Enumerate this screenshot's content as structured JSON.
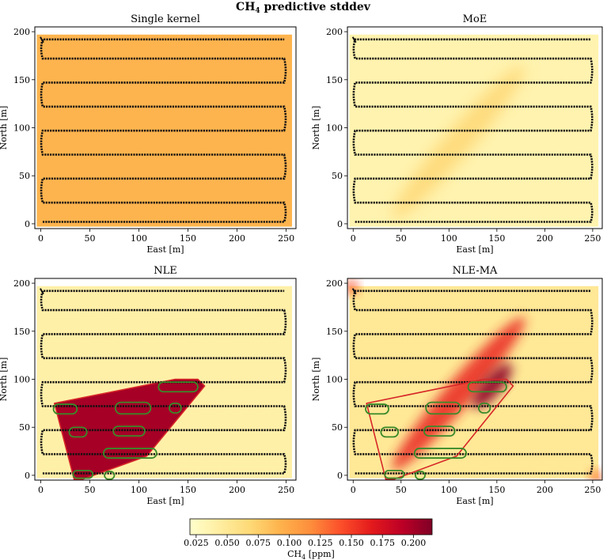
{
  "figure": {
    "title_main": "CH",
    "title_sub": "4",
    "title_rest": " predictive stddev"
  },
  "colorbar": {
    "label_main": "CH",
    "label_sub": "4",
    "label_rest": " [ppm]",
    "range": [
      0.02,
      0.215
    ],
    "ticks": [
      {
        "value": 0.025,
        "label": "0.025"
      },
      {
        "value": 0.05,
        "label": "0.050"
      },
      {
        "value": 0.075,
        "label": "0.075"
      },
      {
        "value": 0.1,
        "label": "0.100"
      },
      {
        "value": 0.125,
        "label": "0.125"
      },
      {
        "value": 0.15,
        "label": "0.150"
      },
      {
        "value": 0.175,
        "label": "0.175"
      },
      {
        "value": 0.2,
        "label": "0.200"
      }
    ],
    "colormap": [
      "#ffffcc",
      "#ffeda0",
      "#fed976",
      "#feb24c",
      "#fd8d3c",
      "#fc4e2a",
      "#e31a1c",
      "#bd0026",
      "#800026"
    ]
  },
  "chart_data": [
    {
      "type": "heatmap",
      "title": "Single kernel",
      "xlabel": "East [m]",
      "ylabel": "North [m]",
      "xlim": [
        -6,
        260
      ],
      "ylim": [
        -5,
        205
      ],
      "xticks": [
        0,
        50,
        100,
        150,
        200,
        250
      ],
      "yticks": [
        0,
        50,
        100,
        150,
        200
      ],
      "base_std": 0.092,
      "plume_peak_std": 0,
      "source_hull": false,
      "nle_region": false
    },
    {
      "type": "heatmap",
      "title": "MoE",
      "xlabel": "East [m]",
      "ylabel": "North [m]",
      "xlim": [
        -6,
        260
      ],
      "ylim": [
        -5,
        205
      ],
      "xticks": [
        0,
        50,
        100,
        150,
        200,
        250
      ],
      "yticks": [
        0,
        50,
        100,
        150,
        200
      ],
      "base_std": 0.036,
      "plume_peak_std": 0.07,
      "source_hull": false,
      "nle_region": false
    },
    {
      "type": "heatmap",
      "title": "NLE",
      "xlabel": "East [m]",
      "ylabel": "North [m]",
      "xlim": [
        -6,
        260
      ],
      "ylim": [
        -5,
        205
      ],
      "xticks": [
        0,
        50,
        100,
        150,
        200,
        250
      ],
      "yticks": [
        0,
        50,
        100,
        150,
        200
      ],
      "base_std": 0.04,
      "plume_peak_std": 0,
      "region_std": 0.2,
      "source_hull": true,
      "nle_region": true
    },
    {
      "type": "heatmap",
      "title": "NLE-MA",
      "xlabel": "East [m]",
      "ylabel": "North [m]",
      "xlim": [
        -6,
        260
      ],
      "ylim": [
        -5,
        205
      ],
      "xticks": [
        0,
        50,
        100,
        150,
        200,
        250
      ],
      "yticks": [
        0,
        50,
        100,
        150,
        200
      ],
      "base_std": 0.05,
      "plume_peak_std": 0.16,
      "source_hull": true,
      "nle_region": false
    }
  ],
  "flight_path": {
    "rows_north_m": [
      2,
      22,
      47,
      72,
      97,
      122,
      147,
      172,
      192
    ],
    "x_left_m": 2,
    "x_right_m": 248
  },
  "source_hull_m": [
    [
      14,
      75
    ],
    [
      137,
      100
    ],
    [
      160,
      100
    ],
    [
      167,
      93
    ],
    [
      108,
      20
    ],
    [
      43,
      -4
    ],
    [
      34,
      -4
    ],
    [
      14,
      75
    ]
  ],
  "candidate_sources_m": [
    {
      "cx": 140,
      "cy": 92,
      "rx": 20,
      "ry": 5
    },
    {
      "cx": 25,
      "cy": 69,
      "rx": 12,
      "ry": 5
    },
    {
      "cx": 94,
      "cy": 70,
      "rx": 18,
      "ry": 6
    },
    {
      "cx": 137,
      "cy": 70,
      "rx": 6,
      "ry": 5
    },
    {
      "cx": 38,
      "cy": 45,
      "rx": 9,
      "ry": 5
    },
    {
      "cx": 90,
      "cy": 46,
      "rx": 16,
      "ry": 5
    },
    {
      "cx": 91,
      "cy": 23,
      "rx": 27,
      "ry": 5
    },
    {
      "cx": 43,
      "cy": 1,
      "rx": 10,
      "ry": 4
    },
    {
      "cx": 70,
      "cy": 0,
      "rx": 5,
      "ry": 4
    }
  ]
}
